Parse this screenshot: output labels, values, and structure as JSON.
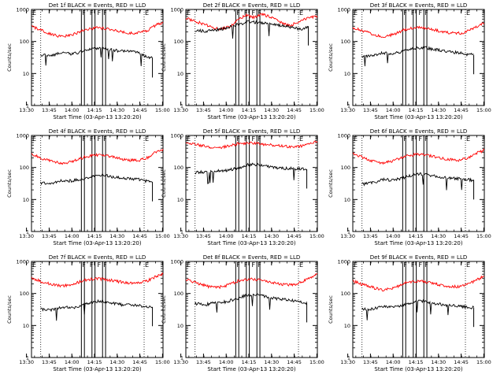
{
  "chart_data": [
    {
      "type": "line",
      "title": "Det 1f BLACK = Events, RED = LLD",
      "xlabel": "Start Time (03-Apr-13 13:20:20)",
      "ylabel": "Counts/sec",
      "yscale": "log",
      "ylim": [
        1,
        1000
      ],
      "xticks": [
        "13:30",
        "13:45",
        "14:00",
        "14:15",
        "14:30",
        "14:45",
        "15:00"
      ],
      "yticks": [
        "1",
        "10",
        "100",
        "1000"
      ],
      "xlim_minutes": [
        13.0,
        100.0
      ],
      "markers": [
        "E",
        "F",
        "F",
        "F",
        "F",
        "E"
      ],
      "series": [
        {
          "color": "#ff0000",
          "x": [
            13,
            20,
            28,
            33,
            40,
            48,
            56,
            63,
            70,
            77,
            84,
            90,
            95,
            100
          ],
          "values": [
            300,
            215,
            160,
            140,
            160,
            230,
            270,
            250,
            210,
            180,
            185,
            225,
            320,
            400
          ]
        },
        {
          "color": "#000000",
          "x": [
            19,
            26,
            33,
            40,
            47,
            54,
            60,
            65,
            72,
            78,
            84,
            88,
            93
          ],
          "values": [
            38,
            35,
            45,
            40,
            50,
            60,
            65,
            55,
            50,
            48,
            45,
            35,
            30
          ]
        }
      ]
    },
    {
      "type": "line",
      "title": "Det 2f BLACK = Events, RED = LLD",
      "xlabel": "Start Time (03-Apr-13 13:20:20)",
      "ylabel": "Counts/sec",
      "yscale": "log",
      "ylim": [
        1,
        1000
      ],
      "xticks": [
        "13:30",
        "13:45",
        "14:00",
        "14:15",
        "14:30",
        "14:45",
        "15:00"
      ],
      "yticks": [
        "1",
        "10",
        "100",
        "1000"
      ],
      "xlim_minutes": [
        13.0,
        100.0
      ],
      "markers": [
        "E",
        "F",
        "F",
        "F",
        "F",
        "E"
      ],
      "series": [
        {
          "color": "#ff0000",
          "x": [
            13,
            20,
            28,
            35,
            42,
            48,
            53,
            58,
            63,
            68,
            73,
            78,
            82,
            88,
            94,
            100
          ],
          "values": [
            530,
            420,
            300,
            240,
            290,
            480,
            670,
            560,
            700,
            620,
            470,
            350,
            310,
            430,
            560,
            580
          ]
        },
        {
          "color": "#000000",
          "x": [
            19,
            26,
            33,
            40,
            47,
            54,
            60,
            66,
            72,
            78,
            84,
            90,
            94
          ],
          "values": [
            220,
            210,
            230,
            260,
            330,
            410,
            400,
            370,
            340,
            310,
            270,
            230,
            300
          ]
        }
      ]
    },
    {
      "type": "line",
      "title": "Det 3f BLACK = Events, RED = LLD",
      "xlabel": "Start Time (03-Apr-13 13:20:20)",
      "ylabel": "Counts/sec",
      "yscale": "log",
      "ylim": [
        1,
        1000
      ],
      "xticks": [
        "13:30",
        "13:45",
        "14:00",
        "14:15",
        "14:30",
        "14:45",
        "15:00"
      ],
      "yticks": [
        "1",
        "10",
        "100",
        "1000"
      ],
      "xlim_minutes": [
        13.0,
        100.0
      ],
      "markers": [
        "E",
        "F",
        "F",
        "F",
        "F",
        "E"
      ],
      "series": [
        {
          "color": "#ff0000",
          "x": [
            13,
            20,
            28,
            33,
            40,
            48,
            56,
            63,
            70,
            77,
            84,
            90,
            95,
            100
          ],
          "values": [
            280,
            210,
            160,
            145,
            165,
            240,
            275,
            255,
            215,
            185,
            180,
            215,
            300,
            380
          ]
        },
        {
          "color": "#000000",
          "x": [
            19,
            26,
            33,
            40,
            47,
            54,
            60,
            65,
            72,
            78,
            84,
            88,
            93
          ],
          "values": [
            35,
            36,
            44,
            42,
            52,
            62,
            66,
            58,
            52,
            47,
            44,
            40,
            38
          ]
        }
      ]
    },
    {
      "type": "line",
      "title": "Det 4f BLACK = Events, RED = LLD",
      "xlabel": "Start Time (03-Apr-13 13:20:20)",
      "ylabel": "Counts/sec",
      "yscale": "log",
      "ylim": [
        1,
        1000
      ],
      "xticks": [
        "13:30",
        "13:45",
        "14:00",
        "14:15",
        "14:30",
        "14:45",
        "15:00"
      ],
      "yticks": [
        "1",
        "10",
        "100",
        "1000"
      ],
      "xlim_minutes": [
        13.0,
        100.0
      ],
      "markers": [
        "E",
        "F",
        "F",
        "F",
        "F",
        "E"
      ],
      "series": [
        {
          "color": "#ff0000",
          "x": [
            13,
            20,
            28,
            33,
            40,
            48,
            56,
            63,
            70,
            77,
            84,
            90,
            95,
            100
          ],
          "values": [
            260,
            190,
            150,
            130,
            150,
            210,
            250,
            230,
            195,
            170,
            165,
            205,
            290,
            360
          ]
        },
        {
          "color": "#000000",
          "x": [
            19,
            26,
            33,
            40,
            47,
            54,
            60,
            65,
            72,
            78,
            84,
            88,
            93
          ],
          "values": [
            33,
            32,
            40,
            38,
            45,
            55,
            60,
            52,
            47,
            45,
            42,
            38,
            35
          ]
        }
      ]
    },
    {
      "type": "line",
      "title": "Det 5f BLACK = Events, RED = LLD",
      "xlabel": "Start Time (03-Apr-13 13:20:20)",
      "ylabel": "Counts/sec",
      "yscale": "log",
      "ylim": [
        1,
        1000
      ],
      "xticks": [
        "13:30",
        "13:45",
        "14:00",
        "14:15",
        "14:30",
        "14:45",
        "15:00"
      ],
      "yticks": [
        "1",
        "10",
        "100",
        "1000"
      ],
      "xlim_minutes": [
        13.0,
        100.0
      ],
      "markers": [
        "E",
        "F",
        "F",
        "F",
        "F",
        "E"
      ],
      "series": [
        {
          "color": "#ff0000",
          "x": [
            13,
            20,
            28,
            35,
            42,
            48,
            56,
            63,
            70,
            77,
            84,
            90,
            95,
            100
          ],
          "values": [
            620,
            520,
            440,
            420,
            470,
            560,
            590,
            540,
            500,
            460,
            440,
            470,
            560,
            680
          ]
        },
        {
          "color": "#000000",
          "x": [
            19,
            26,
            33,
            40,
            47,
            54,
            60,
            65,
            72,
            78,
            84,
            88,
            93
          ],
          "values": [
            70,
            72,
            78,
            80,
            95,
            120,
            125,
            110,
            100,
            95,
            92,
            90,
            88
          ]
        }
      ]
    },
    {
      "type": "line",
      "title": "Det 6f BLACK = Events, RED = LLD",
      "xlabel": "Start Time (03-Apr-13 13:20:20)",
      "ylabel": "Counts/sec",
      "yscale": "log",
      "ylim": [
        1,
        1000
      ],
      "xticks": [
        "13:30",
        "13:45",
        "14:00",
        "14:15",
        "14:30",
        "14:45",
        "15:00"
      ],
      "yticks": [
        "1",
        "10",
        "100",
        "1000"
      ],
      "xlim_minutes": [
        13.0,
        100.0
      ],
      "markers": [
        "E",
        "F",
        "F",
        "F",
        "F",
        "E"
      ],
      "series": [
        {
          "color": "#ff0000",
          "x": [
            13,
            20,
            28,
            33,
            40,
            48,
            56,
            63,
            70,
            77,
            84,
            90,
            95,
            100
          ],
          "values": [
            270,
            200,
            150,
            140,
            160,
            230,
            260,
            240,
            205,
            175,
            170,
            210,
            280,
            350
          ]
        },
        {
          "color": "#000000",
          "x": [
            19,
            26,
            33,
            40,
            47,
            54,
            60,
            65,
            72,
            78,
            84,
            88,
            93
          ],
          "values": [
            30,
            33,
            42,
            40,
            48,
            60,
            62,
            55,
            50,
            46,
            44,
            42,
            40
          ]
        }
      ]
    },
    {
      "type": "line",
      "title": "Det 7f BLACK = Events, RED = LLD",
      "xlabel": "Start Time (03-Apr-13 13:20:20)",
      "ylabel": "Counts/sec",
      "yscale": "log",
      "ylim": [
        1,
        1000
      ],
      "xticks": [
        "13:30",
        "13:45",
        "14:00",
        "14:15",
        "14:30",
        "14:45",
        "15:00"
      ],
      "yticks": [
        "1",
        "10",
        "100",
        "1000"
      ],
      "xlim_minutes": [
        13.0,
        100.0
      ],
      "markers": [
        "E",
        "F",
        "F",
        "F",
        "F",
        "E"
      ],
      "series": [
        {
          "color": "#ff0000",
          "x": [
            13,
            20,
            28,
            33,
            40,
            48,
            56,
            63,
            70,
            77,
            84,
            90,
            95,
            100
          ],
          "values": [
            300,
            230,
            185,
            170,
            190,
            260,
            290,
            270,
            235,
            210,
            210,
            250,
            330,
            420
          ]
        },
        {
          "color": "#000000",
          "x": [
            19,
            26,
            33,
            40,
            47,
            54,
            60,
            65,
            72,
            78,
            84,
            88,
            93
          ],
          "values": [
            32,
            30,
            38,
            36,
            44,
            55,
            58,
            50,
            45,
            44,
            42,
            40,
            38
          ]
        }
      ]
    },
    {
      "type": "line",
      "title": "Det 8f BLACK = Events, RED = LLD",
      "xlabel": "Start Time (03-Apr-13 13:20:20)",
      "ylabel": "Counts/sec",
      "yscale": "log",
      "ylim": [
        1,
        1000
      ],
      "xticks": [
        "13:30",
        "13:45",
        "14:00",
        "14:15",
        "14:30",
        "14:45",
        "15:00"
      ],
      "yticks": [
        "1",
        "10",
        "100",
        "1000"
      ],
      "xlim_minutes": [
        13.0,
        100.0
      ],
      "markers": [
        "E",
        "F",
        "F",
        "F",
        "F",
        "E"
      ],
      "series": [
        {
          "color": "#ff0000",
          "x": [
            13,
            20,
            28,
            33,
            40,
            48,
            56,
            63,
            70,
            77,
            84,
            90,
            95,
            100
          ],
          "values": [
            280,
            210,
            165,
            150,
            175,
            250,
            280,
            255,
            220,
            190,
            190,
            225,
            310,
            400
          ]
        },
        {
          "color": "#000000",
          "x": [
            19,
            26,
            33,
            40,
            47,
            54,
            60,
            65,
            72,
            78,
            84,
            88,
            93
          ],
          "values": [
            48,
            45,
            52,
            55,
            70,
            90,
            95,
            80,
            70,
            65,
            60,
            55,
            50
          ]
        }
      ]
    },
    {
      "type": "line",
      "title": "Det 9f BLACK = Events, RED = LLD",
      "xlabel": "Start Time (03-Apr-13 13:20:20)",
      "ylabel": "Counts/sec",
      "yscale": "log",
      "ylim": [
        1,
        1000
      ],
      "xticks": [
        "13:30",
        "13:45",
        "14:00",
        "14:15",
        "14:30",
        "14:45",
        "15:00"
      ],
      "yticks": [
        "1",
        "10",
        "100",
        "1000"
      ],
      "xlim_minutes": [
        13.0,
        100.0
      ],
      "markers": [
        "E",
        "F",
        "F",
        "F",
        "F",
        "E"
      ],
      "series": [
        {
          "color": "#ff0000",
          "x": [
            13,
            20,
            28,
            33,
            40,
            48,
            56,
            63,
            70,
            77,
            84,
            90,
            95,
            100
          ],
          "values": [
            250,
            185,
            145,
            130,
            150,
            215,
            245,
            225,
            190,
            165,
            165,
            200,
            270,
            350
          ]
        },
        {
          "color": "#000000",
          "x": [
            19,
            26,
            33,
            40,
            47,
            54,
            60,
            65,
            72,
            78,
            84,
            88,
            93
          ],
          "values": [
            32,
            33,
            40,
            38,
            45,
            55,
            58,
            50,
            45,
            42,
            40,
            38,
            36
          ]
        }
      ]
    }
  ]
}
